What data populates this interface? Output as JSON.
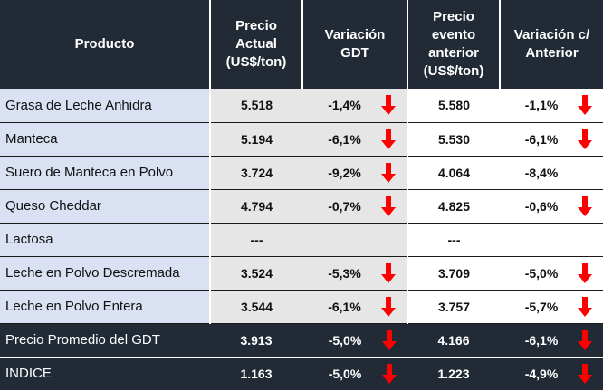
{
  "headers": {
    "product": "Producto",
    "current_price": [
      "Precio",
      "Actual",
      "(US$/ton)"
    ],
    "variation_gdt": [
      "Variación",
      "GDT"
    ],
    "previous_price": [
      "Precio",
      "evento",
      "anterior",
      "(US$/ton)"
    ],
    "variation_prev": [
      "Variación c/",
      "Anterior"
    ]
  },
  "rows": [
    {
      "product": "Grasa de Leche Anhidra",
      "current": "5.518",
      "var_gdt": "-1,4%",
      "arrow_gdt": true,
      "previous": "5.580",
      "var_prev": "-1,1%",
      "arrow_prev": true
    },
    {
      "product": "Manteca",
      "current": "5.194",
      "var_gdt": "-6,1%",
      "arrow_gdt": true,
      "previous": "5.530",
      "var_prev": "-6,1%",
      "arrow_prev": true
    },
    {
      "product": "Suero de Manteca en Polvo",
      "current": "3.724",
      "var_gdt": "-9,2%",
      "arrow_gdt": true,
      "previous": "4.064",
      "var_prev": "-8,4%",
      "arrow_prev": false
    },
    {
      "product": "Queso Cheddar",
      "current": "4.794",
      "var_gdt": "-0,7%",
      "arrow_gdt": true,
      "previous": "4.825",
      "var_prev": "-0,6%",
      "arrow_prev": true
    },
    {
      "product": "Lactosa",
      "current": "---",
      "var_gdt": "",
      "arrow_gdt": false,
      "previous": "---",
      "var_prev": "",
      "arrow_prev": false
    },
    {
      "product": "Leche en Polvo Descremada",
      "current": "3.524",
      "var_gdt": "-5,3%",
      "arrow_gdt": true,
      "previous": "3.709",
      "var_prev": "-5,0%",
      "arrow_prev": true
    },
    {
      "product": "Leche en Polvo Entera",
      "current": "3.544",
      "var_gdt": "-6,1%",
      "arrow_gdt": true,
      "previous": "3.757",
      "var_prev": "-5,7%",
      "arrow_prev": true
    }
  ],
  "summary": [
    {
      "product": "Precio Promedio del GDT",
      "current": "3.913",
      "var_gdt": "-5,0%",
      "arrow_gdt": true,
      "previous": "4.166",
      "var_prev": "-6,1%",
      "arrow_prev": true
    },
    {
      "product": "INDICE",
      "current": "1.163",
      "var_gdt": "-5,0%",
      "arrow_gdt": true,
      "previous": "1.223",
      "var_prev": "-4,9%",
      "arrow_prev": true
    }
  ],
  "colors": {
    "header_bg": "#222a35",
    "name_bg": "#d9e1f2",
    "current_bg": "#e7e6e6",
    "arrow_down": "#ff0000"
  },
  "icons": {
    "decrease": "arrow-down-icon"
  }
}
